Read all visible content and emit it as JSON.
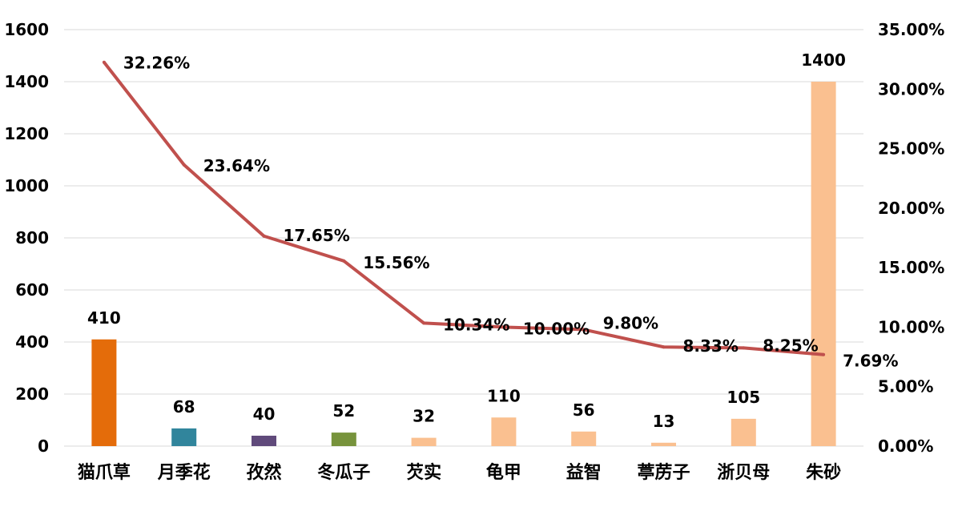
{
  "chart_data": {
    "type": "bar",
    "categories": [
      "猫爪草",
      "月季花",
      "孜然",
      "冬瓜子",
      "芡实",
      "龟甲",
      "益智",
      "葶苈子",
      "浙贝母",
      "朱砂"
    ],
    "series": [
      {
        "type": "bar",
        "axis": "left",
        "values": [
          410,
          68,
          40,
          52,
          32,
          110,
          56,
          13,
          105,
          1400
        ],
        "labels": [
          "410",
          "68",
          "40",
          "52",
          "32",
          "110",
          "56",
          "13",
          "105",
          "1400"
        ],
        "colors": [
          "#e46c0a",
          "#31859c",
          "#604a7b",
          "#77933c",
          "#fac090",
          "#fac090",
          "#fac090",
          "#fac090",
          "#fac090",
          "#fac090"
        ]
      },
      {
        "type": "line",
        "axis": "right",
        "values": [
          32.26,
          23.64,
          17.65,
          15.56,
          10.34,
          10.0,
          9.8,
          8.33,
          8.25,
          7.69
        ],
        "labels": [
          "32.26%",
          "23.64%",
          "17.65%",
          "15.56%",
          "10.34%",
          "10.00%",
          "9.80%",
          "8.33%",
          "8.25%",
          "7.69%"
        ],
        "color": "#c0504d"
      }
    ],
    "y_left": {
      "range": [
        0,
        1600
      ],
      "ticks": [
        "0",
        "200",
        "400",
        "600",
        "800",
        "1000",
        "1200",
        "1400",
        "1600"
      ]
    },
    "y_right": {
      "range": [
        0,
        35
      ],
      "ticks": [
        "0.00%",
        "5.00%",
        "10.00%",
        "15.00%",
        "20.00%",
        "25.00%",
        "30.00%",
        "35.00%"
      ]
    },
    "grid": true,
    "legend": "none",
    "gridline_color": "#d9d9d9"
  }
}
